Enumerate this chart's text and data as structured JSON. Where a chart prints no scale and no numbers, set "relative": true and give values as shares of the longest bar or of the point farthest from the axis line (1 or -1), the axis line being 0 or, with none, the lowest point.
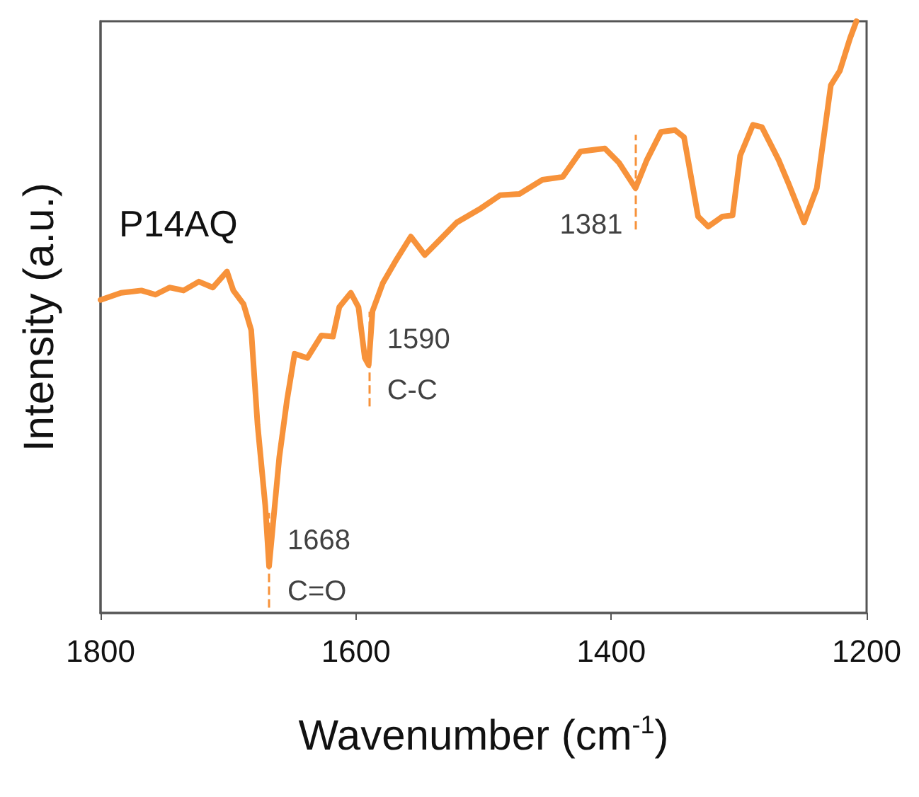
{
  "chart_data": {
    "type": "line",
    "xlabel": "Wavenumber (cm$^{-1}$)",
    "ylabel": "Intensity (a.u.)",
    "relative": true,
    "xlim": [
      1800,
      1200
    ],
    "xticks": [
      1800,
      1600,
      1400,
      1200
    ],
    "grid": false,
    "marker": "none",
    "line_style": "solid",
    "series": [
      {
        "color": "#f7923a",
        "x": [
          1800,
          1784,
          1768,
          1757,
          1746,
          1735,
          1723,
          1712,
          1701,
          1696,
          1688,
          1682,
          1677,
          1671,
          1668,
          1660,
          1654,
          1648,
          1638,
          1627,
          1618,
          1613,
          1604,
          1598,
          1593,
          1590,
          1587,
          1579,
          1568,
          1557,
          1546,
          1535,
          1521,
          1502,
          1487,
          1472,
          1454,
          1438,
          1424,
          1405,
          1394,
          1381,
          1372,
          1361,
          1350,
          1343,
          1332,
          1324,
          1313,
          1305,
          1299,
          1289,
          1282,
          1269,
          1261,
          1249,
          1239,
          1228,
          1221,
          1213,
          1208
        ],
        "values": [
          0.529,
          0.541,
          0.545,
          0.538,
          0.55,
          0.545,
          0.56,
          0.55,
          0.577,
          0.545,
          0.522,
          0.478,
          0.318,
          0.182,
          0.079,
          0.263,
          0.359,
          0.438,
          0.431,
          0.469,
          0.467,
          0.517,
          0.541,
          0.517,
          0.431,
          0.419,
          0.51,
          0.557,
          0.598,
          0.636,
          0.605,
          0.629,
          0.66,
          0.684,
          0.706,
          0.708,
          0.732,
          0.737,
          0.78,
          0.785,
          0.761,
          0.718,
          0.766,
          0.813,
          0.816,
          0.804,
          0.67,
          0.653,
          0.67,
          0.672,
          0.773,
          0.825,
          0.821,
          0.766,
          0.725,
          0.66,
          0.718,
          0.892,
          0.916,
          0.971,
          1
        ]
      }
    ],
    "annotations": [
      "P14AQ",
      {
        "text": "1668\nC=O",
        "x": 1668,
        "y": 0.079
      },
      {
        "text": "1590\nC-C",
        "x": 1590,
        "y": 0.419
      },
      {
        "text": "1381",
        "x": 1381,
        "y": 0.718
      }
    ]
  }
}
